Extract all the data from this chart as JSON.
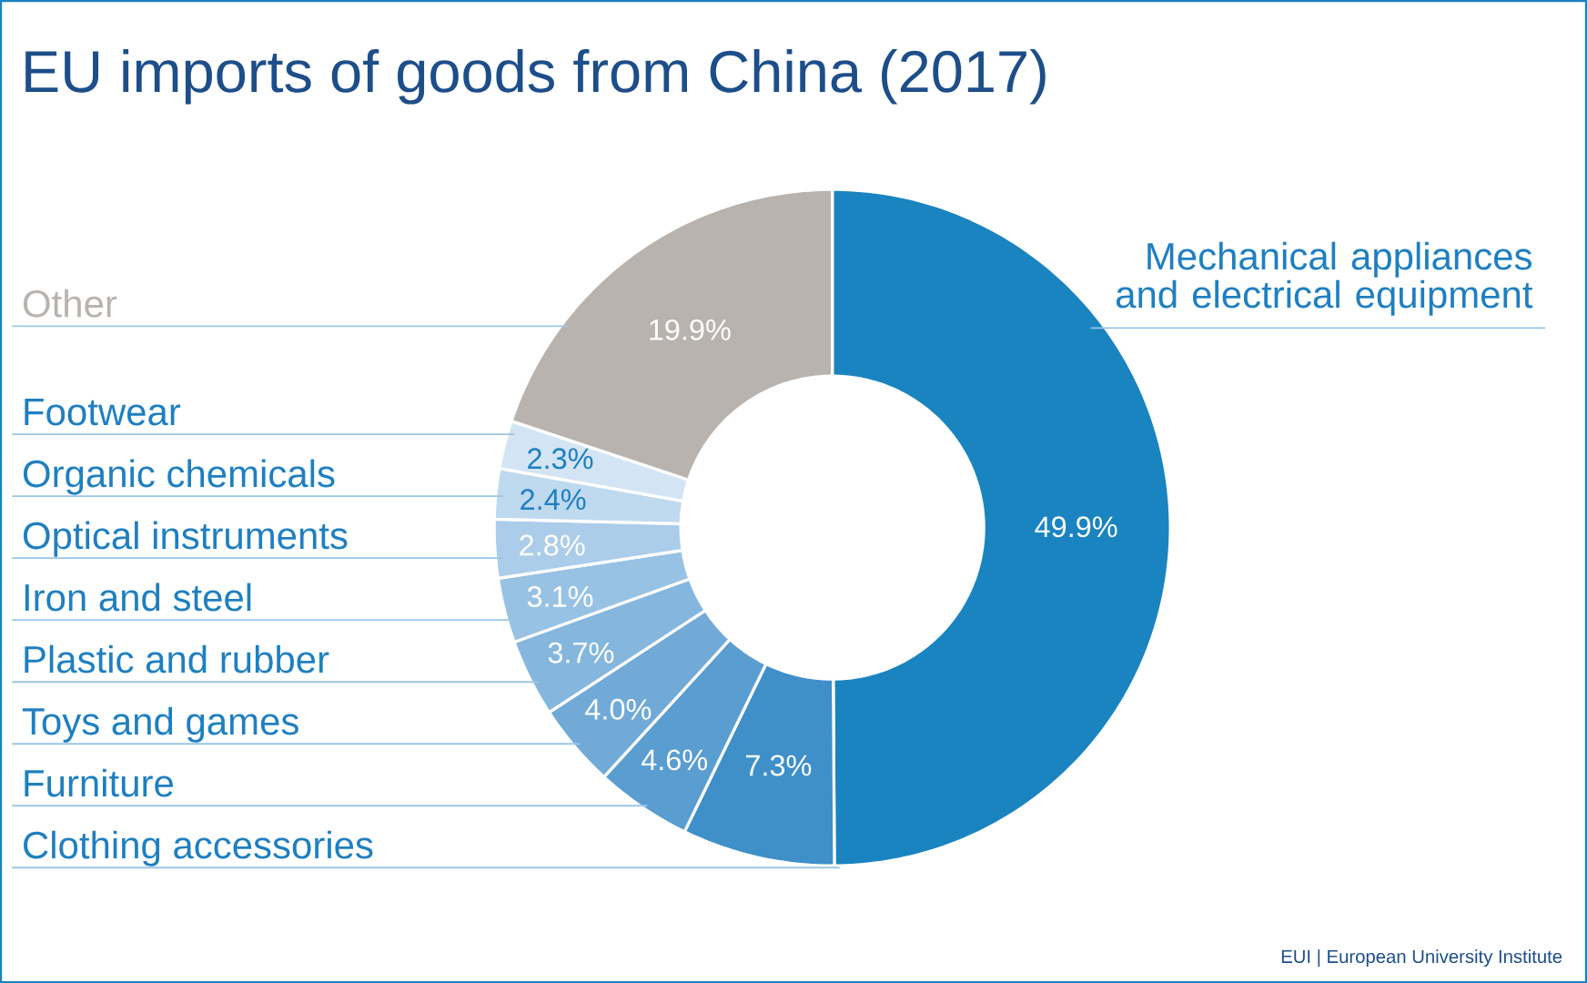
{
  "chart_data": {
    "type": "donut",
    "title": "EU imports of goods from China (2017)",
    "categories": [
      "Mechanical appliances and electrical equipment",
      "Clothing accessories",
      "Furniture",
      "Toys and games",
      "Plastic and rubber",
      "Iron and steel",
      "Optical instruments",
      "Organic chemicals",
      "Footwear",
      "Other"
    ],
    "values": [
      49.9,
      7.3,
      4.6,
      4.0,
      3.7,
      3.1,
      2.8,
      2.4,
      2.3,
      19.9
    ],
    "value_labels": [
      "49.9%",
      "7.3%",
      "4.6%",
      "4.0%",
      "3.7%",
      "3.1%",
      "2.8%",
      "2.4%",
      "2.3%",
      "19.9%"
    ],
    "colors": [
      "#1a84c0",
      "#3f8fc9",
      "#5a9dd1",
      "#71aad7",
      "#85b6dd",
      "#98c2e3",
      "#abcde9",
      "#bfd9ef",
      "#d3e5f4",
      "#b8b3ae"
    ],
    "annotations": [
      "EUI | European University Institute"
    ]
  }
}
